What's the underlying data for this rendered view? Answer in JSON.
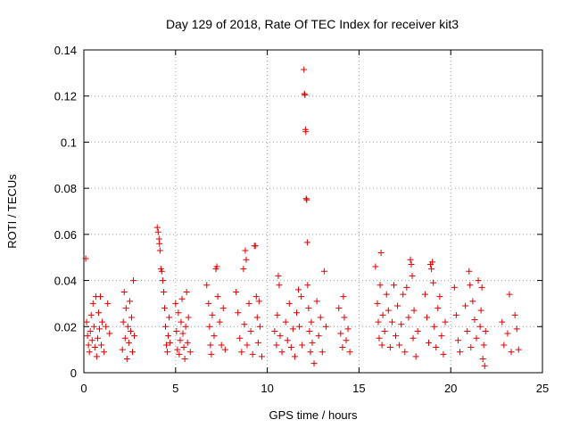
{
  "chart_data": {
    "type": "scatter",
    "title": "Day 129 of 2018, Rate Of TEC Index for receiver kit3",
    "xlabel": "GPS time / hours",
    "ylabel": "ROTI / TECUs",
    "xlim": [
      0,
      25
    ],
    "ylim": [
      0,
      0.14
    ],
    "xticks": [
      0,
      5,
      10,
      15,
      20,
      25
    ],
    "yticks": [
      0,
      0.02,
      0.04,
      0.06,
      0.08,
      0.1,
      0.12,
      0.14
    ],
    "xtick_labels": [
      "0",
      "5",
      "10",
      "15",
      "20",
      "25"
    ],
    "ytick_labels": [
      "0",
      "0.02",
      "0.04",
      "0.06",
      "0.08",
      "0.1",
      "0.12",
      "0.14"
    ],
    "grid": true,
    "marker": "+",
    "color": "#e00000",
    "series": [
      {
        "name": "ROTI",
        "points": [
          [
            0.1,
            0.0495
          ],
          [
            0.15,
            0.022
          ],
          [
            0.2,
            0.016
          ],
          [
            0.25,
            0.012
          ],
          [
            0.3,
            0.009
          ],
          [
            0.35,
            0.018
          ],
          [
            0.4,
            0.025
          ],
          [
            0.45,
            0.014
          ],
          [
            0.5,
            0.03
          ],
          [
            0.55,
            0.02
          ],
          [
            0.6,
            0.011
          ],
          [
            0.65,
            0.033
          ],
          [
            0.7,
            0.007
          ],
          [
            0.75,
            0.015
          ],
          [
            0.8,
            0.026
          ],
          [
            0.85,
            0.019
          ],
          [
            0.9,
            0.033
          ],
          [
            0.95,
            0.012
          ],
          [
            1.0,
            0.022
          ],
          [
            1.1,
            0.009
          ],
          [
            1.2,
            0.02
          ],
          [
            1.3,
            0.03
          ],
          [
            1.4,
            0.017
          ],
          [
            2.1,
            0.01
          ],
          [
            2.15,
            0.022
          ],
          [
            2.2,
            0.035
          ],
          [
            2.25,
            0.015
          ],
          [
            2.3,
            0.028
          ],
          [
            2.35,
            0.006
          ],
          [
            2.4,
            0.02
          ],
          [
            2.45,
            0.013
          ],
          [
            2.5,
            0.031
          ],
          [
            2.55,
            0.018
          ],
          [
            2.6,
            0.024
          ],
          [
            2.65,
            0.009
          ],
          [
            2.7,
            0.04
          ],
          [
            2.75,
            0.016
          ],
          [
            4.0,
            0.063
          ],
          [
            4.05,
            0.061
          ],
          [
            4.1,
            0.058
          ],
          [
            4.12,
            0.056
          ],
          [
            4.15,
            0.053
          ],
          [
            4.2,
            0.045
          ],
          [
            4.25,
            0.044
          ],
          [
            4.3,
            0.04
          ],
          [
            4.35,
            0.035
          ],
          [
            4.4,
            0.028
          ],
          [
            4.45,
            0.02
          ],
          [
            4.5,
            0.012
          ],
          [
            4.55,
            0.009
          ],
          [
            4.6,
            0.016
          ],
          [
            4.65,
            0.024
          ],
          [
            4.7,
            0.013
          ],
          [
            5.0,
            0.03
          ],
          [
            5.05,
            0.018
          ],
          [
            5.1,
            0.01
          ],
          [
            5.15,
            0.026
          ],
          [
            5.2,
            0.008
          ],
          [
            5.25,
            0.014
          ],
          [
            5.3,
            0.022
          ],
          [
            5.35,
            0.032
          ],
          [
            5.4,
            0.017
          ],
          [
            5.45,
            0.011
          ],
          [
            5.5,
            0.006
          ],
          [
            5.55,
            0.02
          ],
          [
            5.6,
            0.035
          ],
          [
            5.65,
            0.013
          ],
          [
            5.7,
            0.024
          ],
          [
            5.8,
            0.009
          ],
          [
            6.7,
            0.038
          ],
          [
            6.8,
            0.03
          ],
          [
            6.85,
            0.02
          ],
          [
            6.9,
            0.012
          ],
          [
            6.95,
            0.008
          ],
          [
            7.0,
            0.025
          ],
          [
            7.1,
            0.016
          ],
          [
            7.2,
            0.045
          ],
          [
            7.25,
            0.046
          ],
          [
            7.3,
            0.033
          ],
          [
            7.4,
            0.022
          ],
          [
            7.5,
            0.012
          ],
          [
            7.6,
            0.028
          ],
          [
            7.7,
            0.01
          ],
          [
            8.3,
            0.035
          ],
          [
            8.4,
            0.026
          ],
          [
            8.5,
            0.015
          ],
          [
            8.6,
            0.009
          ],
          [
            8.7,
            0.045
          ],
          [
            8.75,
            0.021
          ],
          [
            8.8,
            0.053
          ],
          [
            8.85,
            0.049
          ],
          [
            8.9,
            0.012
          ],
          [
            9.0,
            0.03
          ],
          [
            9.1,
            0.018
          ],
          [
            9.2,
            0.008
          ],
          [
            9.3,
            0.055
          ],
          [
            9.35,
            0.055
          ],
          [
            9.4,
            0.033
          ],
          [
            9.45,
            0.024
          ],
          [
            9.5,
            0.013
          ],
          [
            9.55,
            0.031
          ],
          [
            9.6,
            0.02
          ],
          [
            9.7,
            0.007
          ],
          [
            10.4,
            0.018
          ],
          [
            10.5,
            0.012
          ],
          [
            10.55,
            0.025
          ],
          [
            10.6,
            0.042
          ],
          [
            10.65,
            0.038
          ],
          [
            10.7,
            0.016
          ],
          [
            10.8,
            0.009
          ],
          [
            11.0,
            0.022
          ],
          [
            11.1,
            0.014
          ],
          [
            11.2,
            0.03
          ],
          [
            11.3,
            0.011
          ],
          [
            11.4,
            0.019
          ],
          [
            11.5,
            0.007
          ],
          [
            11.6,
            0.026
          ],
          [
            11.7,
            0.036
          ],
          [
            11.75,
            0.02
          ],
          [
            11.85,
            0.033
          ],
          [
            11.9,
            0.012
          ],
          [
            12.0,
            0.1315
          ],
          [
            12.02,
            0.121
          ],
          [
            12.05,
            0.1205
          ],
          [
            12.08,
            0.1055
          ],
          [
            12.1,
            0.1045
          ],
          [
            12.12,
            0.0755
          ],
          [
            12.15,
            0.075
          ],
          [
            12.18,
            0.0565
          ],
          [
            12.2,
            0.038
          ],
          [
            12.25,
            0.028
          ],
          [
            12.3,
            0.018
          ],
          [
            12.35,
            0.009
          ],
          [
            12.4,
            0.022
          ],
          [
            12.45,
            0.013
          ],
          [
            12.55,
            0.004
          ],
          [
            12.7,
            0.031
          ],
          [
            12.8,
            0.016
          ],
          [
            12.9,
            0.024
          ],
          [
            13.0,
            0.009
          ],
          [
            13.1,
            0.044
          ],
          [
            13.2,
            0.02
          ],
          [
            13.9,
            0.028
          ],
          [
            14.0,
            0.017
          ],
          [
            14.1,
            0.011
          ],
          [
            14.15,
            0.033
          ],
          [
            14.2,
            0.024
          ],
          [
            14.3,
            0.014
          ],
          [
            14.4,
            0.019
          ],
          [
            14.5,
            0.009
          ],
          [
            15.9,
            0.046
          ],
          [
            16.0,
            0.03
          ],
          [
            16.05,
            0.022
          ],
          [
            16.1,
            0.015
          ],
          [
            16.15,
            0.038
          ],
          [
            16.2,
            0.052
          ],
          [
            16.25,
            0.012
          ],
          [
            16.3,
            0.025
          ],
          [
            16.4,
            0.018
          ],
          [
            16.5,
            0.034
          ],
          [
            16.6,
            0.027
          ],
          [
            16.7,
            0.011
          ],
          [
            16.8,
            0.022
          ],
          [
            16.9,
            0.038
          ],
          [
            17.0,
            0.016
          ],
          [
            17.1,
            0.029
          ],
          [
            17.2,
            0.012
          ],
          [
            17.3,
            0.021
          ],
          [
            17.4,
            0.034
          ],
          [
            17.5,
            0.009
          ],
          [
            17.6,
            0.037
          ],
          [
            17.7,
            0.024
          ],
          [
            17.8,
            0.049
          ],
          [
            17.85,
            0.047
          ],
          [
            17.9,
            0.042
          ],
          [
            17.95,
            0.015
          ],
          [
            18.0,
            0.027
          ],
          [
            18.1,
            0.007
          ],
          [
            18.2,
            0.018
          ],
          [
            18.6,
            0.034
          ],
          [
            18.7,
            0.024
          ],
          [
            18.8,
            0.013
          ],
          [
            18.9,
            0.047
          ],
          [
            18.95,
            0.045
          ],
          [
            19.0,
            0.048
          ],
          [
            19.05,
            0.039
          ],
          [
            19.1,
            0.02
          ],
          [
            19.2,
            0.011
          ],
          [
            19.3,
            0.028
          ],
          [
            19.4,
            0.033
          ],
          [
            19.5,
            0.016
          ],
          [
            19.6,
            0.008
          ],
          [
            19.7,
            0.022
          ],
          [
            20.2,
            0.037
          ],
          [
            20.3,
            0.025
          ],
          [
            20.4,
            0.014
          ],
          [
            20.5,
            0.009
          ],
          [
            20.8,
            0.029
          ],
          [
            20.9,
            0.018
          ],
          [
            21.0,
            0.044
          ],
          [
            21.05,
            0.038
          ],
          [
            21.1,
            0.011
          ],
          [
            21.2,
            0.031
          ],
          [
            21.3,
            0.023
          ],
          [
            21.4,
            0.015
          ],
          [
            21.5,
            0.04
          ],
          [
            21.6,
            0.02
          ],
          [
            21.65,
            0.027
          ],
          [
            21.7,
            0.037
          ],
          [
            21.75,
            0.006
          ],
          [
            21.8,
            0.012
          ],
          [
            21.85,
            0.003
          ],
          [
            21.9,
            0.018
          ],
          [
            22.8,
            0.022
          ],
          [
            22.9,
            0.012
          ],
          [
            23.1,
            0.017
          ],
          [
            23.2,
            0.034
          ],
          [
            23.3,
            0.009
          ],
          [
            23.5,
            0.025
          ],
          [
            23.6,
            0.019
          ],
          [
            23.7,
            0.01
          ]
        ]
      }
    ]
  }
}
